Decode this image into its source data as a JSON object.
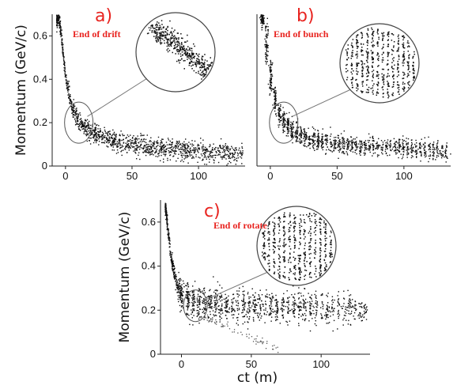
{
  "chart_data": [
    {
      "type": "scatter",
      "panel_label": "a)",
      "annotation": "End of drift",
      "ylabel": "Momentum (GeV/c)",
      "xlabel": "",
      "x_ticks": [
        0,
        50,
        100
      ],
      "y_ticks": [
        0,
        0.2,
        0.4,
        0.6
      ],
      "xlim": [
        -10,
        135
      ],
      "ylim": [
        0,
        0.7
      ],
      "grid": false,
      "distribution": "single thin hyperbolic band, momentum falling with ct",
      "band_centerline": [
        {
          "x": -5,
          "y": 0.68
        },
        {
          "x": 0,
          "y": 0.4
        },
        {
          "x": 5,
          "y": 0.26
        },
        {
          "x": 10,
          "y": 0.2
        },
        {
          "x": 20,
          "y": 0.15
        },
        {
          "x": 40,
          "y": 0.11
        },
        {
          "x": 70,
          "y": 0.085
        },
        {
          "x": 100,
          "y": 0.07
        },
        {
          "x": 130,
          "y": 0.06
        }
      ]
    },
    {
      "type": "scatter",
      "panel_label": "b)",
      "annotation": "End of bunch",
      "ylabel": "",
      "xlabel": "",
      "x_ticks": [
        0,
        50,
        100
      ],
      "y_ticks": [],
      "xlim": [
        -10,
        135
      ],
      "ylim": [
        0,
        0.7
      ],
      "grid": false,
      "distribution": "band broken into vertical bunches",
      "band_centerline": [
        {
          "x": -5,
          "y": 0.68
        },
        {
          "x": 0,
          "y": 0.4
        },
        {
          "x": 5,
          "y": 0.26
        },
        {
          "x": 10,
          "y": 0.2
        },
        {
          "x": 20,
          "y": 0.15
        },
        {
          "x": 40,
          "y": 0.11
        },
        {
          "x": 70,
          "y": 0.095
        },
        {
          "x": 100,
          "y": 0.085
        },
        {
          "x": 130,
          "y": 0.075
        }
      ]
    },
    {
      "type": "scatter",
      "panel_label": "c)",
      "annotation": "End of rotate",
      "ylabel": "Momentum (GeV/c)",
      "xlabel": "ct  (m)",
      "x_ticks": [
        0,
        50,
        100
      ],
      "y_ticks": [
        0,
        0.2,
        0.4,
        0.6
      ],
      "xlim": [
        -15,
        135
      ],
      "ylim": [
        0,
        0.7
      ],
      "grid": false,
      "distribution": "bunches rotated to a flat band near 0.2 GeV/c",
      "band_centerline": [
        {
          "x": -12,
          "y": 0.68
        },
        {
          "x": -8,
          "y": 0.45
        },
        {
          "x": -3,
          "y": 0.3
        },
        {
          "x": 5,
          "y": 0.24
        },
        {
          "x": 20,
          "y": 0.23
        },
        {
          "x": 60,
          "y": 0.22
        },
        {
          "x": 100,
          "y": 0.21
        },
        {
          "x": 130,
          "y": 0.2
        }
      ]
    }
  ]
}
